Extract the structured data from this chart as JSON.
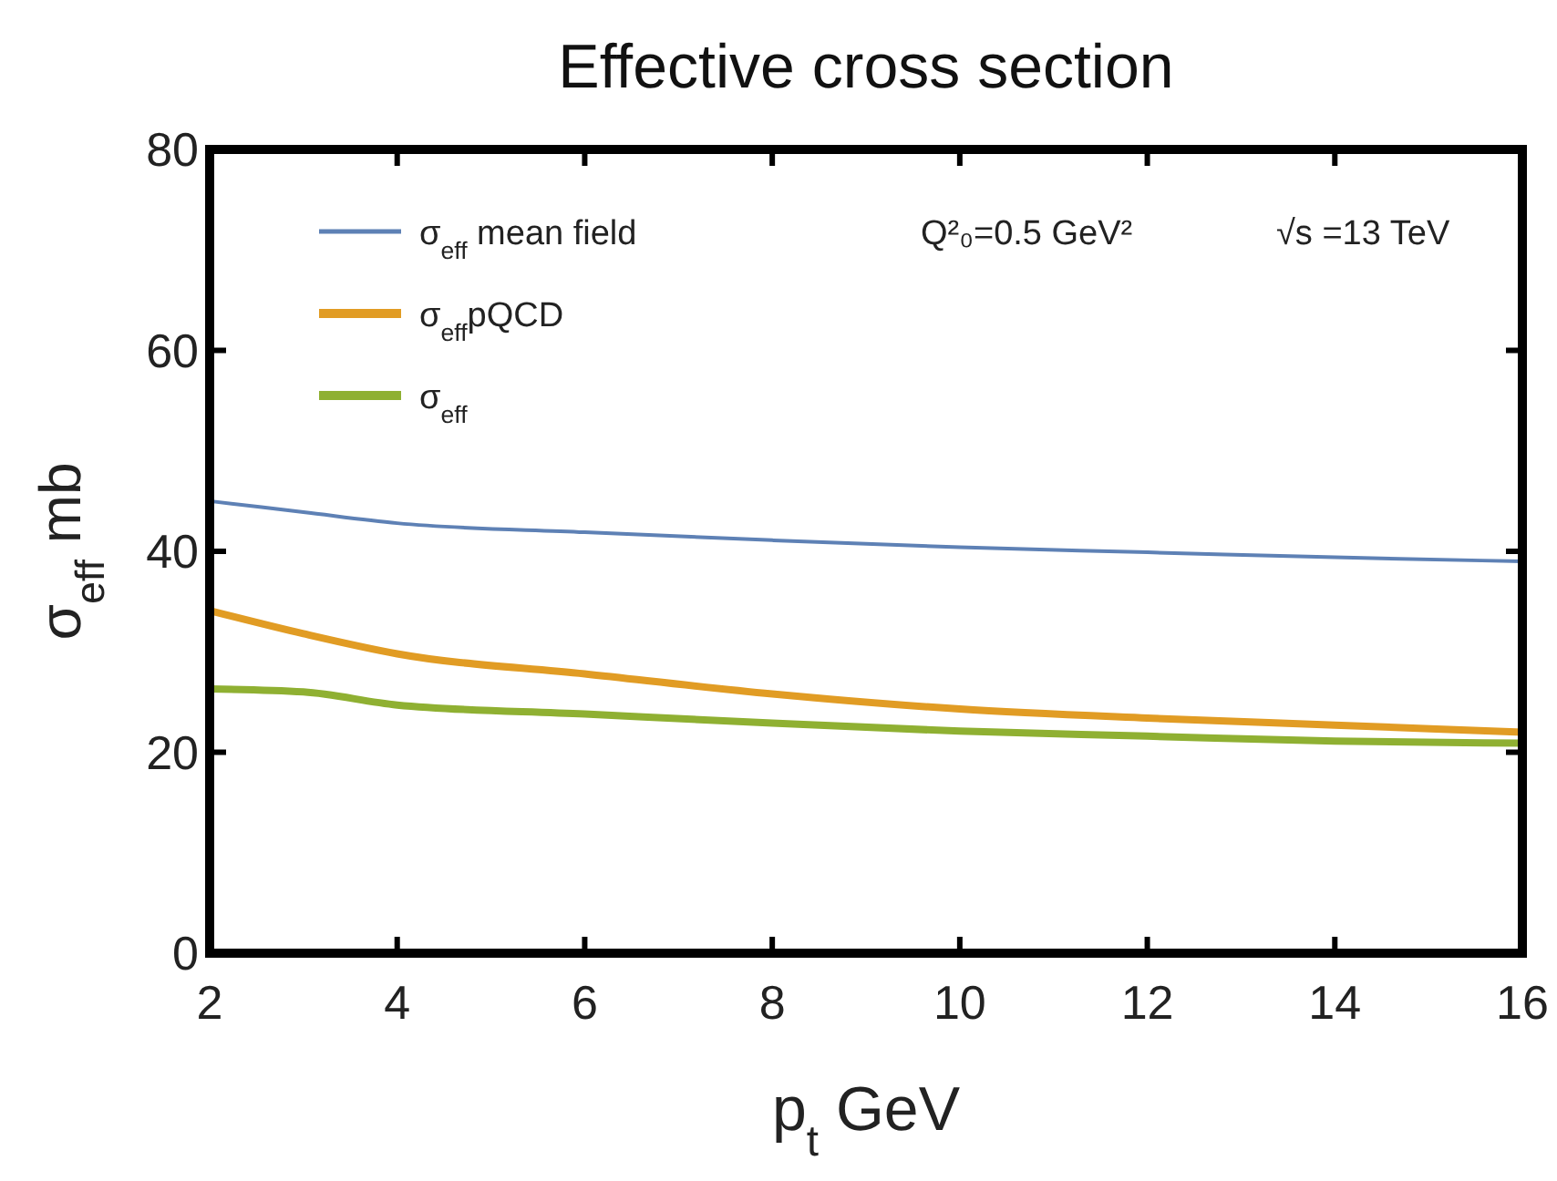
{
  "chart_data": {
    "type": "line",
    "title": "Effective cross section",
    "xlabel": "p$_{t}$ GeV",
    "ylabel": "σ$_{eff}$ mb",
    "x": [
      2,
      3,
      4,
      6,
      8,
      10,
      12,
      14,
      16
    ],
    "xlim": [
      2,
      16
    ],
    "xticks": [
      2,
      4,
      6,
      8,
      10,
      12,
      14,
      16
    ],
    "ylim": [
      0,
      80
    ],
    "yticks": [
      0,
      20,
      40,
      60,
      80
    ],
    "grid": false,
    "legend": "top left",
    "marker": "none",
    "line_style": "solid",
    "annotations": [
      "Q²₀=0.5 GeV²",
      "√s =13 TeV"
    ],
    "series": [
      {
        "name": "σ$_{eff}$ mean field",
        "color": "#5e81b5",
        "values": [
          45,
          43.9,
          42.8,
          41.9,
          41.1,
          40.4,
          39.9,
          39.4,
          39
        ]
      },
      {
        "name": "σ$_{eff}$pQCD",
        "color": "#e19c24",
        "values": [
          34.1,
          31.8,
          29.8,
          27.8,
          25.8,
          24.3,
          23.4,
          22.7,
          22
        ]
      },
      {
        "name": "σ$_{eff}$",
        "color": "#8fb032",
        "values": [
          26.3,
          26,
          24.7,
          23.8,
          22.9,
          22.1,
          21.6,
          21.1,
          20.9
        ]
      }
    ]
  }
}
